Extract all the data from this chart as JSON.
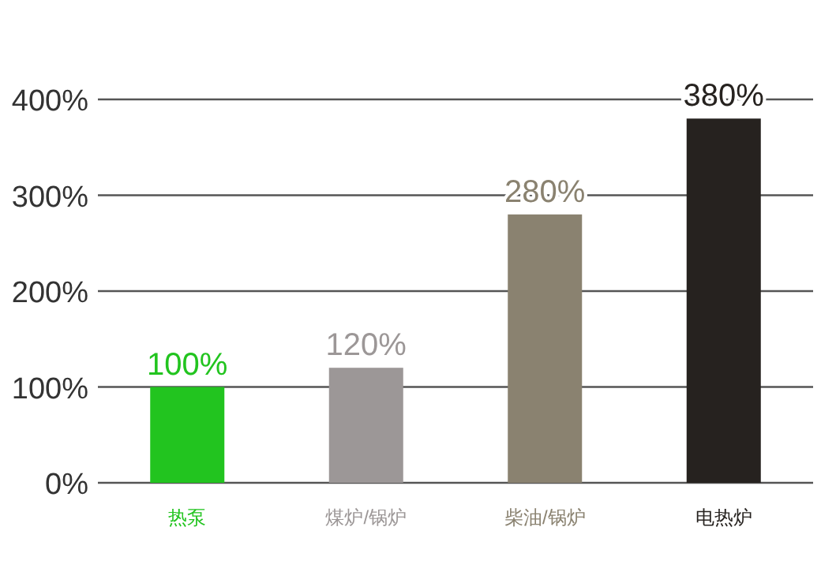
{
  "chart_data": {
    "type": "bar",
    "categories": [
      "热泵",
      "煤炉/锅炉",
      "柴油/锅炉",
      "电热炉"
    ],
    "values": [
      100,
      120,
      280,
      380
    ],
    "colors": [
      "#22c41f",
      "#9c9797",
      "#8a8270",
      "#26221f"
    ],
    "value_labels": [
      "100%",
      "120%",
      "280%",
      "380%"
    ],
    "ylim": [
      0,
      400
    ],
    "yticks": [
      {
        "value": 0,
        "label": "0%"
      },
      {
        "value": 100,
        "label": "100%"
      },
      {
        "value": 200,
        "label": "200%"
      },
      {
        "value": 300,
        "label": "300%"
      },
      {
        "value": 400,
        "label": "400%"
      }
    ],
    "grid": "y"
  }
}
